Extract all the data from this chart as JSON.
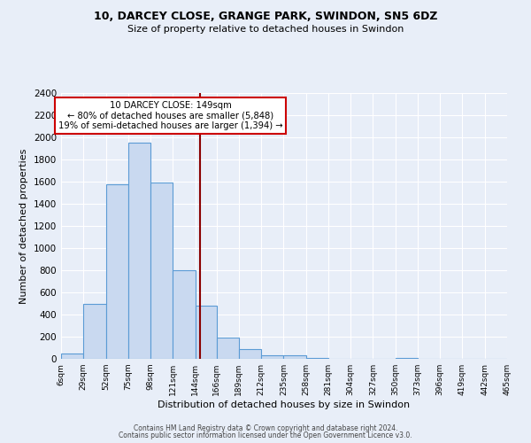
{
  "title1": "10, DARCEY CLOSE, GRANGE PARK, SWINDON, SN5 6DZ",
  "title2": "Size of property relative to detached houses in Swindon",
  "xlabel": "Distribution of detached houses by size in Swindon",
  "ylabel": "Number of detached properties",
  "bin_edges": [
    6,
    29,
    52,
    75,
    98,
    121,
    144,
    166,
    189,
    212,
    235,
    258,
    281,
    304,
    327,
    350,
    373,
    396,
    419,
    442,
    465
  ],
  "bar_heights": [
    50,
    500,
    1575,
    1950,
    1595,
    800,
    480,
    190,
    90,
    35,
    35,
    5,
    0,
    0,
    0,
    5,
    0,
    0,
    0,
    0
  ],
  "bar_color": "#c9d9f0",
  "bar_edge_color": "#5b9bd5",
  "vline_x": 149,
  "vline_color": "#8b0000",
  "annotation_title": "10 DARCEY CLOSE: 149sqm",
  "annotation_line1": "← 80% of detached houses are smaller (5,848)",
  "annotation_line2": "19% of semi-detached houses are larger (1,394) →",
  "annotation_box_color": "white",
  "annotation_box_edge": "#cc0000",
  "ylim": [
    0,
    2400
  ],
  "yticks": [
    0,
    200,
    400,
    600,
    800,
    1000,
    1200,
    1400,
    1600,
    1800,
    2000,
    2200,
    2400
  ],
  "tick_labels": [
    "6sqm",
    "29sqm",
    "52sqm",
    "75sqm",
    "98sqm",
    "121sqm",
    "144sqm",
    "166sqm",
    "189sqm",
    "212sqm",
    "235sqm",
    "258sqm",
    "281sqm",
    "304sqm",
    "327sqm",
    "350sqm",
    "373sqm",
    "396sqm",
    "419sqm",
    "442sqm",
    "465sqm"
  ],
  "footer1": "Contains HM Land Registry data © Crown copyright and database right 2024.",
  "footer2": "Contains public sector information licensed under the Open Government Licence v3.0.",
  "bg_color": "#e8eef8",
  "plot_bg_color": "#e8eef8",
  "grid_color": "#ffffff"
}
